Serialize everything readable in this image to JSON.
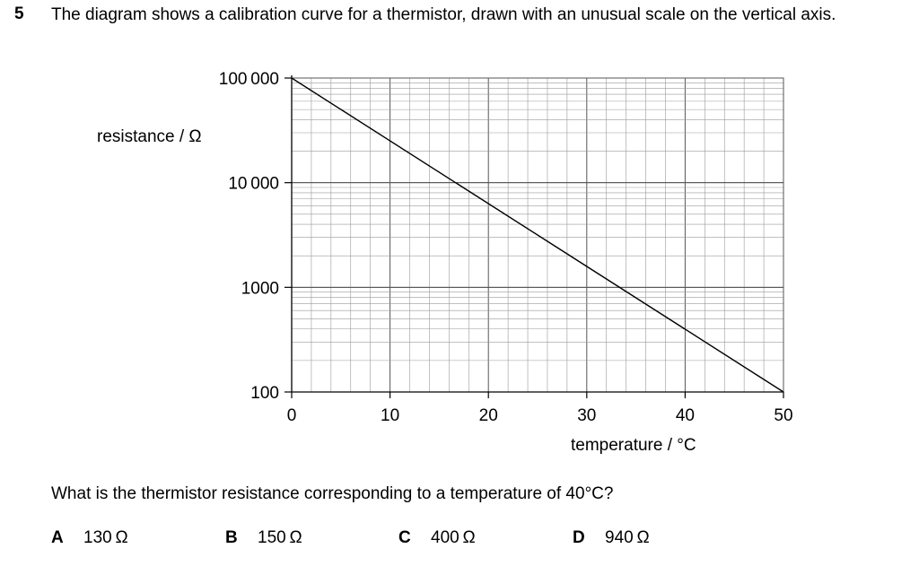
{
  "question": {
    "number": "5",
    "intro": "The diagram shows a calibration curve for a thermistor, drawn with an unusual scale on the vertical axis.",
    "prompt": "What is the thermistor resistance corresponding to a temperature of 40°C?",
    "options": [
      {
        "letter": "A",
        "text": "130 Ω"
      },
      {
        "letter": "B",
        "text": "150 Ω"
      },
      {
        "letter": "C",
        "text": "400 Ω"
      },
      {
        "letter": "D",
        "text": "940 Ω"
      }
    ]
  },
  "chart_data": {
    "type": "line",
    "xlabel": "temperature / °C",
    "ylabel": "resistance / Ω",
    "x_ticks": [
      0,
      10,
      20,
      30,
      40,
      50
    ],
    "x_tick_labels": [
      "0",
      "10",
      "20",
      "30",
      "40",
      "50"
    ],
    "y_ticks": [
      100,
      1000,
      10000,
      100000
    ],
    "y_tick_labels": [
      "100",
      "1000",
      "10 000",
      "100 000"
    ],
    "y_scale": "log",
    "xlim": [
      0,
      50
    ],
    "ylim": [
      100,
      100000
    ],
    "grid": true,
    "series": [
      {
        "x": [
          0,
          50
        ],
        "y": [
          100000,
          100
        ]
      }
    ]
  }
}
